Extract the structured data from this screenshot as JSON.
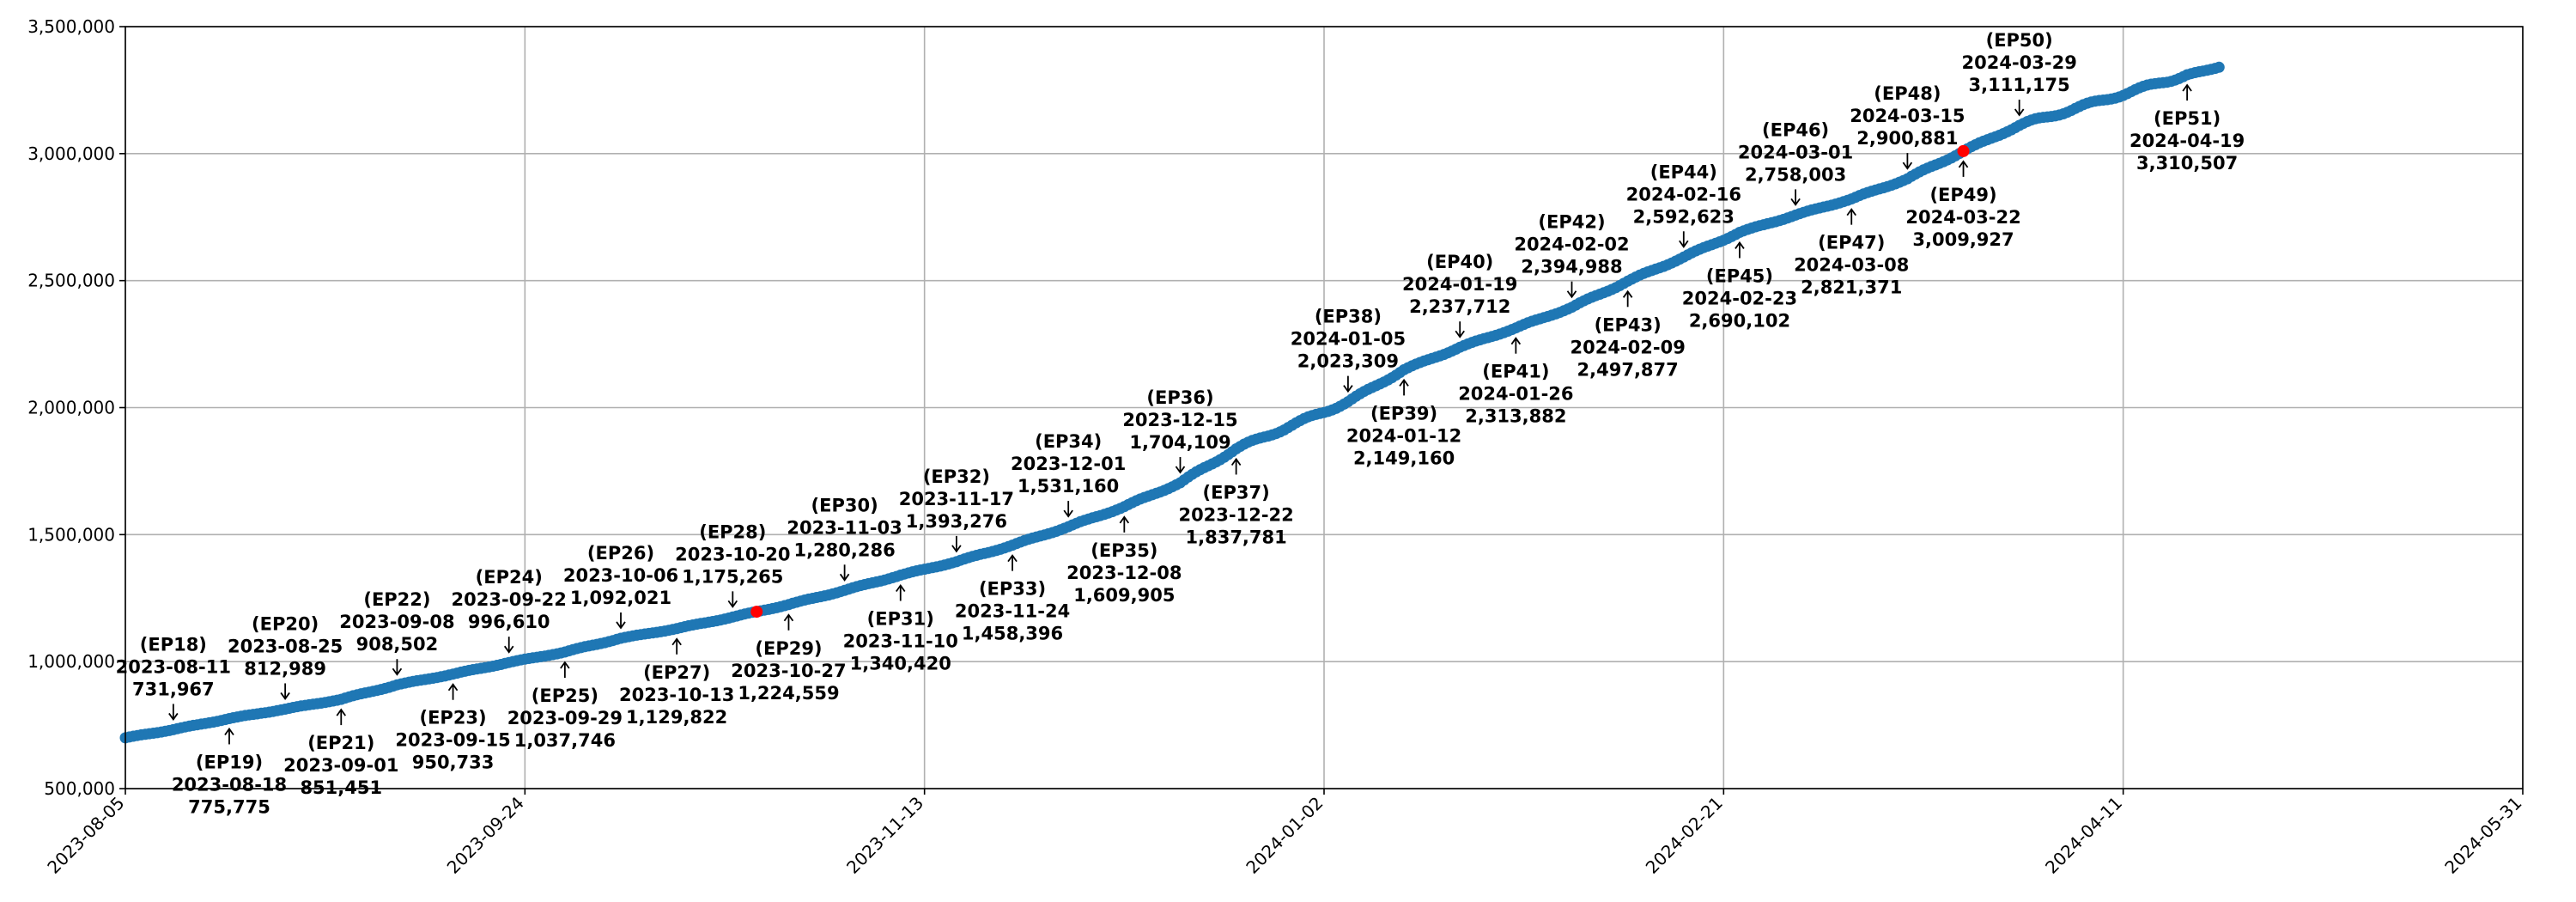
{
  "chart_data": {
    "type": "line",
    "title": "",
    "xlabel": "",
    "ylabel": "",
    "grid": true,
    "xlim": [
      "2023-08-05",
      "2024-05-31"
    ],
    "ylim": [
      500000,
      3500000
    ],
    "xticks": [
      "2023-08-05",
      "2023-09-24",
      "2023-11-13",
      "2024-01-02",
      "2024-02-21",
      "2024-04-11",
      "2024-05-31"
    ],
    "yticks": [
      500000,
      1000000,
      1500000,
      2000000,
      2500000,
      3000000,
      3500000
    ],
    "ytick_labels": [
      "500,000",
      "1,000,000",
      "1,500,000",
      "2,000,000",
      "2,500,000",
      "3,000,000",
      "3,500,000"
    ],
    "colors": {
      "line": "#1f77b4",
      "highlight": "#ff0000",
      "grid": "#b0b0b0"
    },
    "highlight_dates": [
      "2023-10-23",
      "2024-03-22"
    ],
    "series": [
      {
        "points": [
          [
            "2023-08-05",
            700000
          ],
          [
            "2023-08-11",
            731967
          ],
          [
            "2023-08-18",
            775775
          ],
          [
            "2023-08-25",
            812989
          ],
          [
            "2023-09-01",
            851451
          ],
          [
            "2023-09-08",
            908502
          ],
          [
            "2023-09-15",
            950733
          ],
          [
            "2023-09-22",
            996610
          ],
          [
            "2023-09-29",
            1037746
          ],
          [
            "2023-10-06",
            1092021
          ],
          [
            "2023-10-13",
            1129822
          ],
          [
            "2023-10-20",
            1175265
          ],
          [
            "2023-10-27",
            1224559
          ],
          [
            "2023-11-03",
            1280286
          ],
          [
            "2023-11-10",
            1340420
          ],
          [
            "2023-11-17",
            1393276
          ],
          [
            "2023-11-24",
            1458396
          ],
          [
            "2023-12-01",
            1531160
          ],
          [
            "2023-12-08",
            1609905
          ],
          [
            "2023-12-15",
            1704109
          ],
          [
            "2023-12-22",
            1837781
          ],
          [
            "2024-01-05",
            2023309
          ],
          [
            "2024-01-12",
            2149160
          ],
          [
            "2024-01-19",
            2237712
          ],
          [
            "2024-01-26",
            2313882
          ],
          [
            "2024-02-02",
            2394988
          ],
          [
            "2024-02-09",
            2497877
          ],
          [
            "2024-02-16",
            2592623
          ],
          [
            "2024-02-23",
            2690102
          ],
          [
            "2024-03-01",
            2758003
          ],
          [
            "2024-03-08",
            2821371
          ],
          [
            "2024-03-15",
            2900881
          ],
          [
            "2024-03-22",
            3009927
          ],
          [
            "2024-03-29",
            3111175
          ],
          [
            "2024-04-19",
            3310507
          ],
          [
            "2024-04-23",
            3340000
          ]
        ]
      }
    ],
    "annotations": [
      {
        "ep": "(EP18)",
        "date": "2023-08-11",
        "value": "731,967",
        "y": 731967,
        "side": "above"
      },
      {
        "ep": "(EP19)",
        "date": "2023-08-18",
        "value": "775,775",
        "y": 775775,
        "side": "below"
      },
      {
        "ep": "(EP20)",
        "date": "2023-08-25",
        "value": "812,989",
        "y": 812989,
        "side": "above"
      },
      {
        "ep": "(EP21)",
        "date": "2023-09-01",
        "value": "851,451",
        "y": 851451,
        "side": "below"
      },
      {
        "ep": "(EP22)",
        "date": "2023-09-08",
        "value": "908,502",
        "y": 908502,
        "side": "above"
      },
      {
        "ep": "(EP23)",
        "date": "2023-09-15",
        "value": "950,733",
        "y": 950733,
        "side": "below"
      },
      {
        "ep": "(EP24)",
        "date": "2023-09-22",
        "value": "996,610",
        "y": 996610,
        "side": "above"
      },
      {
        "ep": "(EP25)",
        "date": "2023-09-29",
        "value": "1,037,746",
        "y": 1037746,
        "side": "below"
      },
      {
        "ep": "(EP26)",
        "date": "2023-10-06",
        "value": "1,092,021",
        "y": 1092021,
        "side": "above"
      },
      {
        "ep": "(EP27)",
        "date": "2023-10-13",
        "value": "1,129,822",
        "y": 1129822,
        "side": "below"
      },
      {
        "ep": "(EP28)",
        "date": "2023-10-20",
        "value": "1,175,265",
        "y": 1175265,
        "side": "above"
      },
      {
        "ep": "(EP29)",
        "date": "2023-10-27",
        "value": "1,224,559",
        "y": 1224559,
        "side": "below"
      },
      {
        "ep": "(EP30)",
        "date": "2023-11-03",
        "value": "1,280,286",
        "y": 1280286,
        "side": "above"
      },
      {
        "ep": "(EP31)",
        "date": "2023-11-10",
        "value": "1,340,420",
        "y": 1340420,
        "side": "below"
      },
      {
        "ep": "(EP32)",
        "date": "2023-11-17",
        "value": "1,393,276",
        "y": 1393276,
        "side": "above"
      },
      {
        "ep": "(EP33)",
        "date": "2023-11-24",
        "value": "1,458,396",
        "y": 1458396,
        "side": "below"
      },
      {
        "ep": "(EP34)",
        "date": "2023-12-01",
        "value": "1,531,160",
        "y": 1531160,
        "side": "above"
      },
      {
        "ep": "(EP35)",
        "date": "2023-12-08",
        "value": "1,609,905",
        "y": 1609905,
        "side": "below"
      },
      {
        "ep": "(EP36)",
        "date": "2023-12-15",
        "value": "1,704,109",
        "y": 1704109,
        "side": "above"
      },
      {
        "ep": "(EP37)",
        "date": "2023-12-22",
        "value": "1,837,781",
        "y": 1837781,
        "side": "below"
      },
      {
        "ep": "(EP38)",
        "date": "2024-01-05",
        "value": "2,023,309",
        "y": 2023309,
        "side": "above"
      },
      {
        "ep": "(EP39)",
        "date": "2024-01-12",
        "value": "2,149,160",
        "y": 2149160,
        "side": "below"
      },
      {
        "ep": "(EP40)",
        "date": "2024-01-19",
        "value": "2,237,712",
        "y": 2237712,
        "side": "above"
      },
      {
        "ep": "(EP41)",
        "date": "2024-01-26",
        "value": "2,313,882",
        "y": 2313882,
        "side": "below"
      },
      {
        "ep": "(EP42)",
        "date": "2024-02-02",
        "value": "2,394,988",
        "y": 2394988,
        "side": "above"
      },
      {
        "ep": "(EP43)",
        "date": "2024-02-09",
        "value": "2,497,877",
        "y": 2497877,
        "side": "below"
      },
      {
        "ep": "(EP44)",
        "date": "2024-02-16",
        "value": "2,592,623",
        "y": 2592623,
        "side": "above"
      },
      {
        "ep": "(EP45)",
        "date": "2024-02-23",
        "value": "2,690,102",
        "y": 2690102,
        "side": "below"
      },
      {
        "ep": "(EP46)",
        "date": "2024-03-01",
        "value": "2,758,003",
        "y": 2758003,
        "side": "above"
      },
      {
        "ep": "(EP47)",
        "date": "2024-03-08",
        "value": "2,821,371",
        "y": 2821371,
        "side": "below"
      },
      {
        "ep": "(EP48)",
        "date": "2024-03-15",
        "value": "2,900,881",
        "y": 2900881,
        "side": "above"
      },
      {
        "ep": "(EP49)",
        "date": "2024-03-22",
        "value": "3,009,927",
        "y": 3009927,
        "side": "below"
      },
      {
        "ep": "(EP50)",
        "date": "2024-03-29",
        "value": "3,111,175",
        "y": 3111175,
        "side": "above"
      },
      {
        "ep": "(EP51)",
        "date": "2024-04-19",
        "value": "3,310,507",
        "y": 3310507,
        "side": "below"
      }
    ]
  }
}
